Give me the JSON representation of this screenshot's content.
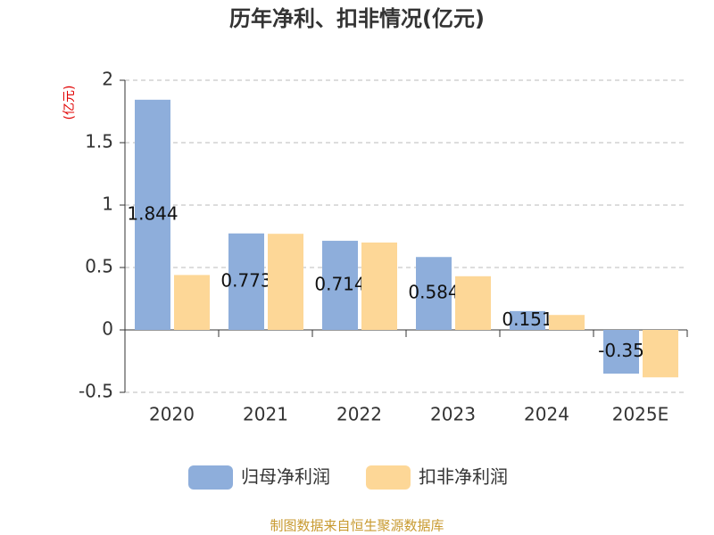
{
  "chart_data": {
    "type": "bar",
    "title": "历年净利、扣非情况(亿元)",
    "y_label": "(亿元)",
    "categories": [
      "2020",
      "2021",
      "2022",
      "2023",
      "2024",
      "2025E"
    ],
    "series": [
      {
        "name": "归母净利润",
        "color": "#8eaedb",
        "values": [
          1.844,
          0.773,
          0.714,
          0.584,
          0.151,
          -0.35
        ],
        "show_labels": true
      },
      {
        "name": "扣非净利润",
        "color": "#fdd797",
        "values": [
          0.44,
          0.77,
          0.7,
          0.43,
          0.12,
          -0.38
        ],
        "show_labels": false
      }
    ],
    "ylim": [
      -0.5,
      2
    ],
    "yticks": [
      -0.5,
      0,
      0.5,
      1,
      1.5,
      2
    ],
    "grid": true,
    "legend": "bottom",
    "source": "制图数据来自恒生聚源数据库"
  }
}
